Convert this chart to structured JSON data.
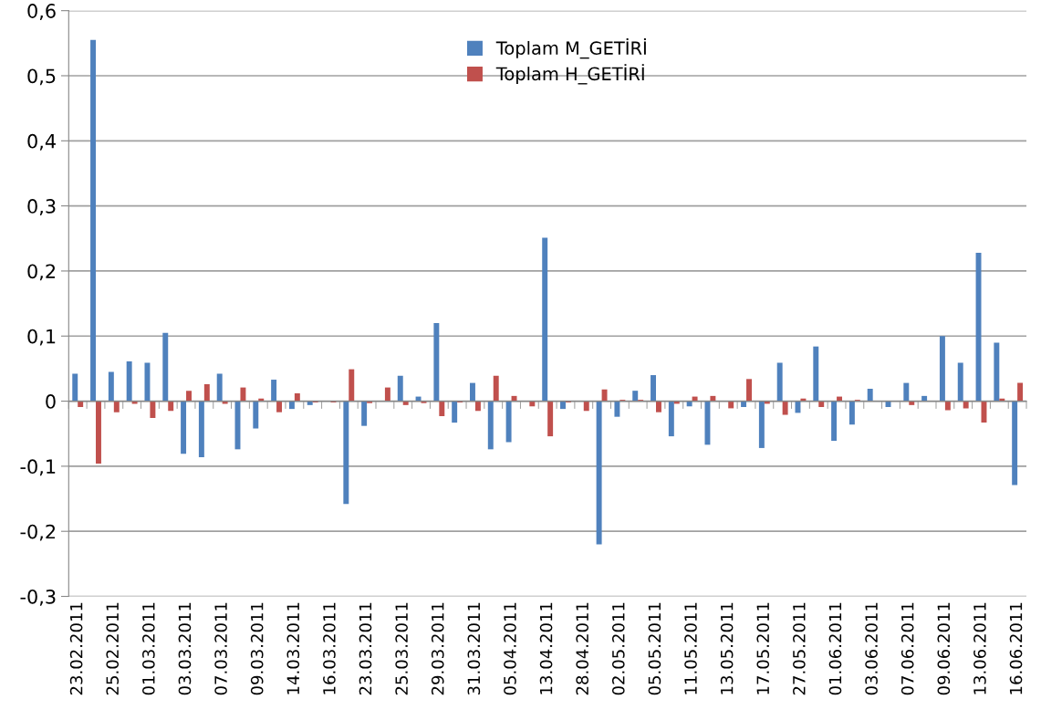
{
  "chart_data": {
    "type": "bar",
    "categories": [
      "23.02.2011",
      null,
      "25.02.2011",
      null,
      "01.03.2011",
      null,
      "03.03.2011",
      null,
      "07.03.2011",
      null,
      "09.03.2011",
      null,
      "14.03.2011",
      null,
      "16.03.2011",
      null,
      "23.03.2011",
      null,
      "25.03.2011",
      null,
      "29.03.2011",
      null,
      "31.03.2011",
      null,
      "05.04.2011",
      null,
      "13.04.2011",
      null,
      "28.04.2011",
      null,
      "02.05.2011",
      null,
      "05.05.2011",
      null,
      "11.05.2011",
      null,
      "13.05.2011",
      null,
      "17.05.2011",
      null,
      "27.05.2011",
      null,
      "01.06.2011",
      null,
      "03.06.2011",
      null,
      "07.06.2011",
      null,
      "09.06.2011",
      null,
      "13.06.2011",
      null,
      "16.06.2011"
    ],
    "series": [
      {
        "name": "Toplam M_GETİRİ",
        "color": "#4f81bd",
        "values": [
          0.042,
          0.555,
          0.045,
          0.061,
          0.059,
          0.105,
          -0.081,
          -0.086,
          0.042,
          -0.074,
          -0.042,
          0.033,
          -0.012,
          -0.006,
          0,
          -0.158,
          -0.038,
          0,
          0.039,
          0.007,
          0.12,
          -0.033,
          0.028,
          -0.074,
          -0.063,
          0,
          0.251,
          -0.012,
          0,
          -0.22,
          -0.024,
          0.016,
          0.04,
          -0.054,
          -0.008,
          -0.067,
          0,
          -0.009,
          -0.072,
          0.059,
          -0.018,
          0.084,
          -0.061,
          -0.036,
          0.019,
          -0.009,
          0.028,
          0.008,
          0.1,
          0.059,
          0.228,
          0.09,
          -0.129
        ]
      },
      {
        "name": "Toplam H_GETİRİ",
        "color": "#c0504d",
        "values": [
          -0.009,
          -0.096,
          -0.017,
          -0.004,
          -0.026,
          -0.015,
          0.016,
          0.026,
          -0.004,
          0.021,
          0.004,
          -0.017,
          0.012,
          -0.002,
          -0.002,
          0.049,
          -0.003,
          0.021,
          -0.006,
          -0.003,
          -0.023,
          -0.002,
          -0.015,
          0.039,
          0.008,
          -0.008,
          -0.054,
          -0.002,
          -0.015,
          0.018,
          0.002,
          0.002,
          -0.017,
          -0.004,
          0.007,
          0.008,
          -0.011,
          0.034,
          -0.004,
          -0.021,
          0.004,
          -0.009,
          0.007,
          0.002,
          0,
          0,
          -0.006,
          0,
          -0.014,
          -0.011,
          -0.033,
          0.004,
          0.028
        ]
      }
    ],
    "ylim": [
      -0.3,
      0.6
    ],
    "yticks": [
      {
        "value": -0.3,
        "label": "-0,3"
      },
      {
        "value": -0.2,
        "label": "-0,2"
      },
      {
        "value": -0.1,
        "label": "-0,1"
      },
      0,
      {
        "value": 0.1,
        "label": "0,1"
      },
      {
        "value": 0.2,
        "label": "0,2"
      },
      {
        "value": 0.3,
        "label": "0,3"
      },
      {
        "value": 0.4,
        "label": "0,4"
      },
      {
        "value": 0.5,
        "label": "0,5"
      },
      {
        "value": 0.6,
        "label": "0,6"
      }
    ],
    "grid": "y",
    "legend": "top"
  }
}
